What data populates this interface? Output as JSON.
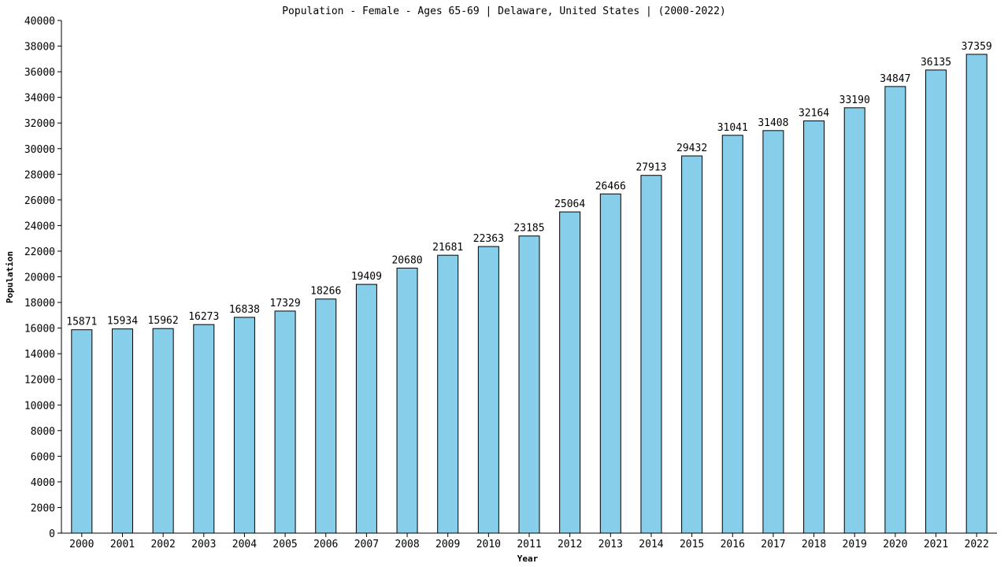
{
  "chart_data": {
    "type": "bar",
    "title": "Population - Female - Ages 65-69 | Delaware, United States |  (2000-2022)",
    "xlabel": "Year",
    "ylabel": "Population",
    "ylim": [
      0,
      40000
    ],
    "ytick_step": 2000,
    "grid": false,
    "legend": "none",
    "bar_color": "#87CEEB",
    "bar_edge_color": "#000000",
    "categories": [
      "2000",
      "2001",
      "2002",
      "2003",
      "2004",
      "2005",
      "2006",
      "2007",
      "2008",
      "2009",
      "2010",
      "2011",
      "2012",
      "2013",
      "2014",
      "2015",
      "2016",
      "2017",
      "2018",
      "2019",
      "2020",
      "2021",
      "2022"
    ],
    "values": [
      15871,
      15934,
      15962,
      16273,
      16838,
      17329,
      18266,
      19409,
      20680,
      21681,
      22363,
      23185,
      25064,
      26466,
      27913,
      29432,
      31041,
      31408,
      32164,
      33190,
      34847,
      36135,
      37359
    ],
    "data_labels": [
      "15871",
      "15934",
      "15962",
      "16273",
      "16838",
      "17329",
      "18266",
      "19409",
      "20680",
      "21681",
      "22363",
      "23185",
      "25064",
      "26466",
      "27913",
      "29432",
      "31041",
      "31408",
      "32164",
      "33190",
      "34847",
      "36135",
      "37359"
    ]
  }
}
